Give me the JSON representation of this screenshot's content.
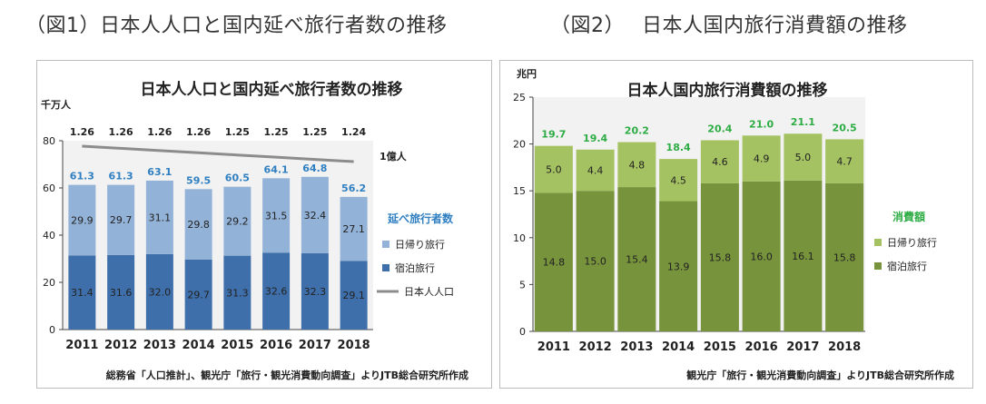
{
  "header": {
    "left": "（図1）日本人人口と国内延べ旅行者数の推移",
    "right": "（図2）　 日本人国内旅行消費額の推移"
  },
  "chart_data": [
    {
      "type": "bar",
      "stacked": true,
      "title": "日本人人口と国内延べ旅行者数の推移",
      "unit_label": "千万人",
      "categories": [
        "2011",
        "2012",
        "2013",
        "2014",
        "2015",
        "2016",
        "2017",
        "2018"
      ],
      "ylim": [
        0,
        80
      ],
      "yticks": [
        0,
        20,
        40,
        60,
        80
      ],
      "series": [
        {
          "name": "宿泊旅行",
          "color": "#3f6faa",
          "values": [
            31.4,
            31.6,
            32.0,
            29.7,
            31.3,
            32.6,
            32.3,
            29.1
          ]
        },
        {
          "name": "日帰り旅行",
          "color": "#93b2d8",
          "values": [
            29.9,
            29.7,
            31.1,
            29.8,
            29.2,
            31.5,
            32.4,
            27.1
          ]
        }
      ],
      "totals": [
        61.3,
        61.3,
        63.1,
        59.5,
        60.5,
        64.1,
        64.8,
        56.2
      ],
      "totals_color": "#2f7fc1",
      "line": {
        "name": "日本人人口",
        "color": "#8c8c8c",
        "labels": [
          "1.26",
          "1.26",
          "1.26",
          "1.26",
          "1.25",
          "1.25",
          "1.25",
          "1.24"
        ]
      },
      "line_axis_label": "1億人",
      "legend_title": "延べ旅行者数",
      "legend_title_color": "#2f7fc1",
      "source": "総務省「人口推計」、観光庁「旅行・観光消費動向調査」よりJTB総合研究所作成",
      "plot_background": "#f2f2f2",
      "grid": false
    },
    {
      "type": "bar",
      "stacked": true,
      "title": "日本人国内旅行消費額の推移",
      "unit_label": "兆円",
      "categories": [
        "2011",
        "2012",
        "2013",
        "2014",
        "2015",
        "2016",
        "2017",
        "2018"
      ],
      "ylim": [
        0,
        25
      ],
      "yticks": [
        0,
        5,
        10,
        15,
        20,
        25
      ],
      "series": [
        {
          "name": "宿泊旅行",
          "color": "#77933c",
          "values": [
            14.8,
            15.0,
            15.4,
            13.9,
            15.8,
            16.0,
            16.1,
            15.8
          ]
        },
        {
          "name": "日帰り旅行",
          "color": "#a5c262",
          "values": [
            5.0,
            4.4,
            4.8,
            4.5,
            4.6,
            4.9,
            5.0,
            4.7
          ]
        }
      ],
      "totals": [
        19.7,
        19.4,
        20.2,
        18.4,
        20.4,
        21.0,
        21.1,
        20.5
      ],
      "totals_color": "#2eac44",
      "legend_title": "消費額",
      "legend_title_color": "#2eac44",
      "source": "観光庁「旅行・観光消費動向調査」よりJTB総合研究所作成",
      "plot_background": "#f2f2f2",
      "grid": false
    }
  ]
}
